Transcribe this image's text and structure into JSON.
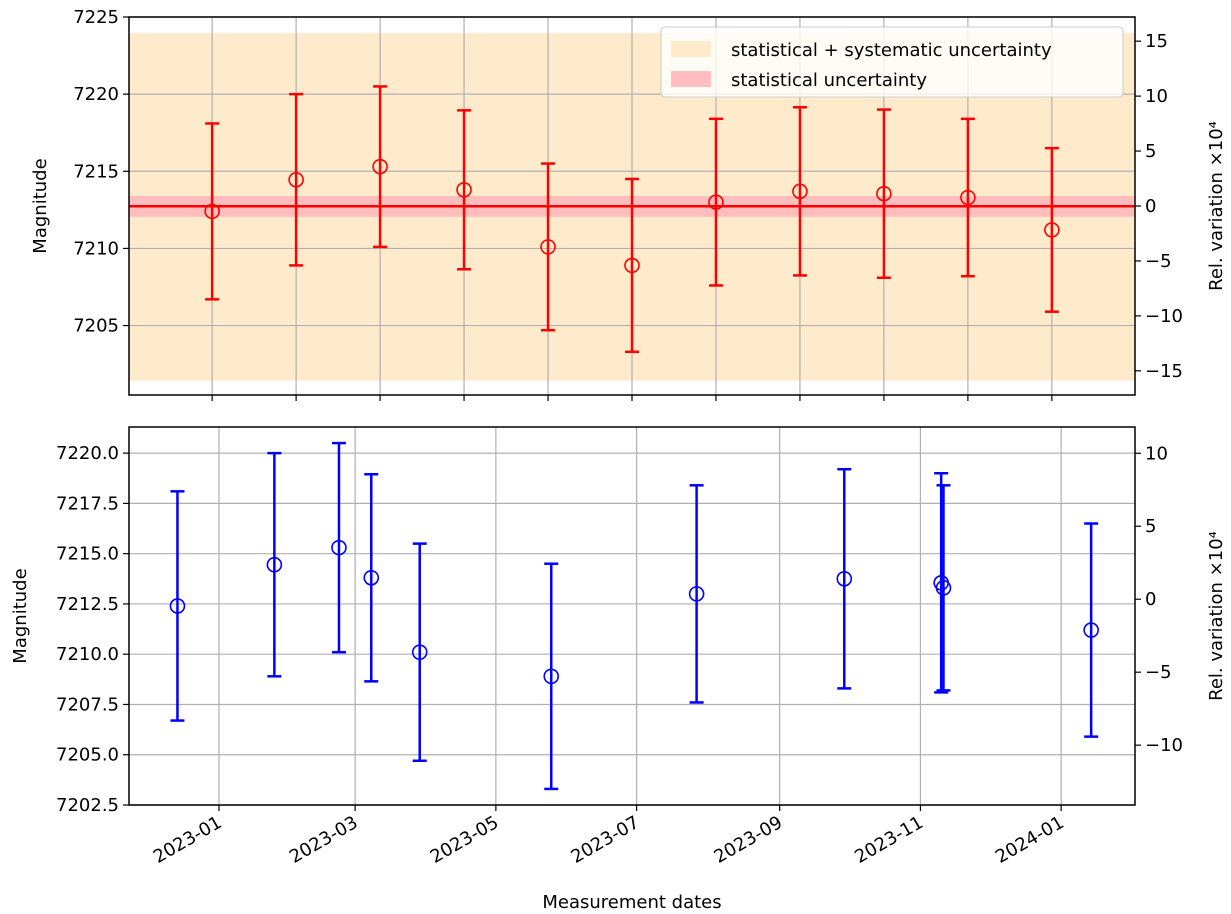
{
  "chart_data": [
    {
      "type": "errorbar",
      "ylabel": "Magnitude",
      "y2label": "Rel. variation ×10⁴",
      "categories": [
        null,
        null,
        null,
        null,
        null,
        null,
        null,
        null,
        null,
        null,
        null
      ],
      "series": [
        {
          "color": "#ff0000",
          "values": [
            7212.4,
            7214.45,
            7215.3,
            7213.8,
            7210.1,
            7208.9,
            7213.0,
            7213.7,
            7213.55,
            7213.3,
            7211.2
          ],
          "errors": [
            5.7,
            5.55,
            5.2,
            5.15,
            5.4,
            5.6,
            5.4,
            5.45,
            5.45,
            5.1,
            5.3
          ]
        }
      ],
      "reference_line": {
        "value": 7212.73,
        "color": "#ff0000"
      },
      "bands": [
        {
          "name": "statistical + systematic uncertainty",
          "color": "#ffebcc",
          "range": [
            7201.43,
            7223.96
          ]
        },
        {
          "name": "statistical uncertainty",
          "color": "#ffbdbd",
          "range": [
            7212.05,
            7213.4
          ]
        }
      ],
      "ylim": [
        7200.5,
        7225
      ],
      "yticks": [
        7205,
        7210,
        7215,
        7220,
        7225
      ],
      "y2lim": [
        -17.2,
        17.2
      ],
      "y2ticks": [
        {
          "value": -15,
          "label": "−15"
        },
        {
          "value": -10,
          "label": "−10"
        },
        {
          "value": -5,
          "label": "−5"
        },
        0,
        5,
        10,
        15
      ],
      "grid": true,
      "legend": "upper right"
    },
    {
      "type": "errorbar",
      "ylabel": "Magnitude",
      "y2label": "Rel. variation ×10⁴",
      "xlabel": "Measurement dates",
      "x": [
        "2022-12-14",
        "2023-01-25",
        "2023-02-22",
        "2023-03-08",
        "2023-03-29",
        "2023-05-25",
        "2023-07-27",
        "2023-09-29",
        "2023-11-10",
        "2023-11-11",
        "2024-01-14"
      ],
      "series": [
        {
          "color": "#0000ff",
          "values": [
            7212.4,
            7214.45,
            7215.3,
            7213.8,
            7210.1,
            7208.9,
            7213.0,
            7213.75,
            7213.55,
            7213.3,
            7211.2
          ],
          "errors": [
            5.7,
            5.55,
            5.2,
            5.15,
            5.4,
            5.6,
            5.4,
            5.45,
            5.45,
            5.1,
            5.3
          ]
        }
      ],
      "xlim": [
        "2022-11-23",
        "2024-02-02"
      ],
      "xticks": [
        "2023-01",
        "2023-03",
        "2023-05",
        "2023-07",
        "2023-09",
        "2023-11",
        "2024-01"
      ],
      "ylim": [
        7202.5,
        7221.3
      ],
      "yticks": [
        7202.5,
        {
          "value": 7205,
          "label": "7205.0"
        },
        7207.5,
        {
          "value": 7210,
          "label": "7210.0"
        },
        7212.5,
        {
          "value": 7215,
          "label": "7215.0"
        },
        7217.5,
        {
          "value": 7220,
          "label": "7220.0"
        }
      ],
      "y2lim": [
        -14.1,
        11.8
      ],
      "y2ticks": [
        {
          "value": -10,
          "label": "−10"
        },
        {
          "value": -5,
          "label": "−5"
        },
        0,
        5,
        10
      ],
      "grid": true
    }
  ]
}
